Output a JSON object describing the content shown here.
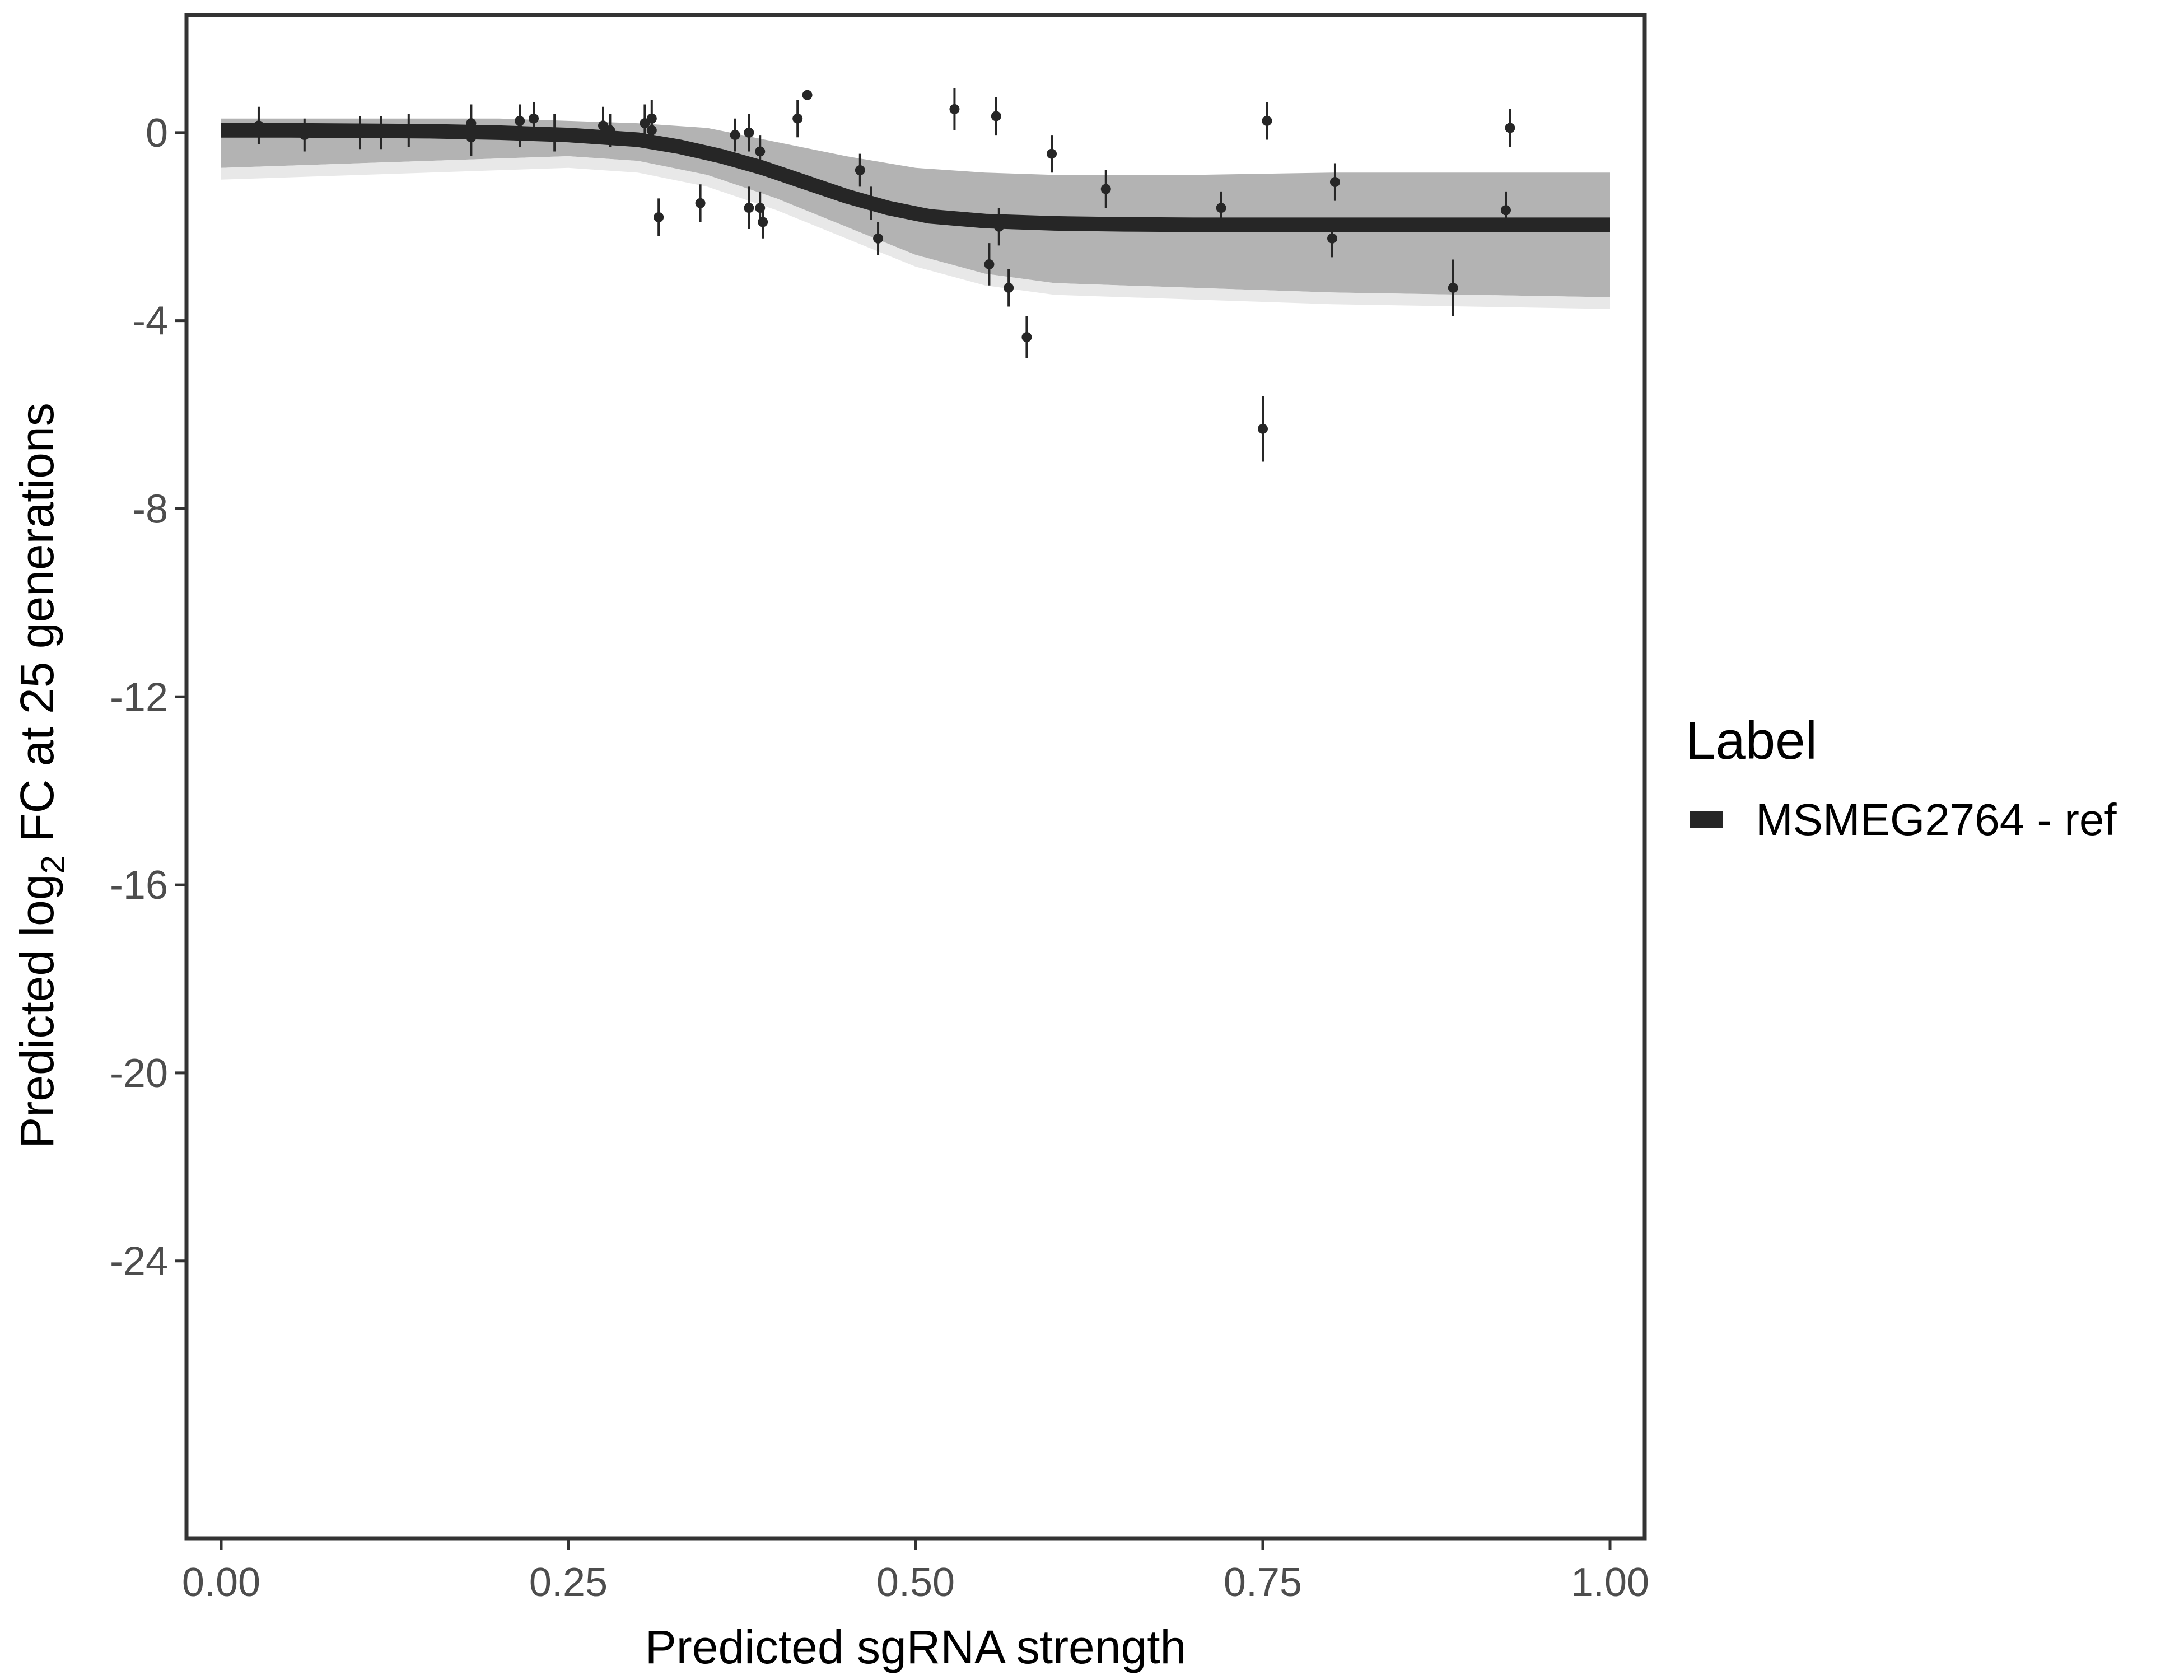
{
  "chart_data": {
    "type": "scatter",
    "xlabel": "Predicted sgRNA strength",
    "ylabel_prefix": "Predicted  log",
    "ylabel_sub": "2",
    "ylabel_suffix": " FC at 25 generations",
    "xlim": [
      -0.025,
      1.025
    ],
    "ylim": [
      -29.9,
      2.5
    ],
    "x_ticks": [
      0,
      0.25,
      0.5,
      0.75,
      1
    ],
    "x_tick_labels": [
      "0.00",
      "0.25",
      "0.50",
      "0.75",
      "1.00"
    ],
    "y_ticks": [
      0,
      -4,
      -8,
      -12,
      -16,
      -20,
      -24
    ],
    "y_tick_labels": [
      "0",
      "-4",
      "-8",
      "-12",
      "-16",
      "-20",
      "-24"
    ],
    "grid": false,
    "legend": {
      "title": "Label",
      "placement": "right",
      "entries": [
        {
          "label": "MSMEG2764 - ref",
          "color": "#262626"
        }
      ]
    },
    "fit_curve": {
      "x": [
        0,
        0.05,
        0.1,
        0.15,
        0.2,
        0.25,
        0.3,
        0.33,
        0.36,
        0.39,
        0.42,
        0.45,
        0.48,
        0.51,
        0.55,
        0.6,
        0.65,
        0.7,
        0.75,
        0.8,
        0.9,
        1.0
      ],
      "y": [
        0.05,
        0.05,
        0.04,
        0.03,
        0.0,
        -0.05,
        -0.15,
        -0.3,
        -0.5,
        -0.75,
        -1.05,
        -1.35,
        -1.6,
        -1.78,
        -1.88,
        -1.93,
        -1.95,
        -1.96,
        -1.96,
        -1.96,
        -1.96,
        -1.96
      ],
      "color": "#262626"
    },
    "uncertainty_band": {
      "x": [
        0,
        0.1,
        0.2,
        0.25,
        0.3,
        0.35,
        0.4,
        0.45,
        0.5,
        0.55,
        0.6,
        0.7,
        0.8,
        0.9,
        1.0
      ],
      "upper": [
        0.3,
        0.3,
        0.3,
        0.25,
        0.2,
        0.1,
        -0.2,
        -0.5,
        -0.75,
        -0.85,
        -0.9,
        -0.9,
        -0.85,
        -0.85,
        -0.85
      ],
      "lower": [
        -0.75,
        -0.65,
        -0.55,
        -0.5,
        -0.6,
        -0.9,
        -1.4,
        -2.0,
        -2.6,
        -3.0,
        -3.2,
        -3.3,
        -3.4,
        -3.45,
        -3.5
      ],
      "color": "#a6a6a6"
    },
    "points": [
      {
        "x": 0.027,
        "y": 0.15,
        "err": 0.4
      },
      {
        "x": 0.06,
        "y": -0.05,
        "err": 0.35
      },
      {
        "x": 0.1,
        "y": 0.0,
        "err": 0.35
      },
      {
        "x": 0.115,
        "y": 0.0,
        "err": 0.35
      },
      {
        "x": 0.135,
        "y": 0.05,
        "err": 0.35
      },
      {
        "x": 0.18,
        "y": 0.2,
        "err": 0.4
      },
      {
        "x": 0.18,
        "y": -0.1,
        "err": 0.4
      },
      {
        "x": 0.215,
        "y": 0.25,
        "err": 0.35
      },
      {
        "x": 0.215,
        "y": 0.05,
        "err": 0.35
      },
      {
        "x": 0.225,
        "y": 0.3,
        "err": 0.35
      },
      {
        "x": 0.24,
        "y": 0.0,
        "err": 0.4
      },
      {
        "x": 0.275,
        "y": 0.15,
        "err": 0.4
      },
      {
        "x": 0.28,
        "y": 0.05,
        "err": 0.35
      },
      {
        "x": 0.305,
        "y": 0.2,
        "err": 0.4
      },
      {
        "x": 0.31,
        "y": 0.3,
        "err": 0.4
      },
      {
        "x": 0.31,
        "y": 0.05,
        "err": 0.35
      },
      {
        "x": 0.315,
        "y": -1.8,
        "err": 0.4
      },
      {
        "x": 0.345,
        "y": -1.5,
        "err": 0.4
      },
      {
        "x": 0.37,
        "y": -0.05,
        "err": 0.35
      },
      {
        "x": 0.38,
        "y": 0.0,
        "err": 0.4
      },
      {
        "x": 0.38,
        "y": -1.6,
        "err": 0.45
      },
      {
        "x": 0.388,
        "y": -0.4,
        "err": 0.35
      },
      {
        "x": 0.388,
        "y": -1.6,
        "err": 0.35
      },
      {
        "x": 0.39,
        "y": -1.9,
        "err": 0.35
      },
      {
        "x": 0.415,
        "y": 0.3,
        "err": 0.4
      },
      {
        "x": 0.422,
        "y": 0.8,
        "err": 0.1
      },
      {
        "x": 0.46,
        "y": -0.8,
        "err": 0.35
      },
      {
        "x": 0.468,
        "y": -1.5,
        "err": 0.35
      },
      {
        "x": 0.473,
        "y": -2.25,
        "err": 0.35
      },
      {
        "x": 0.528,
        "y": 0.5,
        "err": 0.45
      },
      {
        "x": 0.553,
        "y": -2.8,
        "err": 0.45
      },
      {
        "x": 0.558,
        "y": 0.35,
        "err": 0.4
      },
      {
        "x": 0.56,
        "y": -2.0,
        "err": 0.4
      },
      {
        "x": 0.567,
        "y": -3.3,
        "err": 0.4
      },
      {
        "x": 0.58,
        "y": -4.35,
        "err": 0.45
      },
      {
        "x": 0.598,
        "y": -0.45,
        "err": 0.4
      },
      {
        "x": 0.637,
        "y": -1.2,
        "err": 0.4
      },
      {
        "x": 0.72,
        "y": -1.6,
        "err": 0.35
      },
      {
        "x": 0.75,
        "y": -6.3,
        "err": 0.7
      },
      {
        "x": 0.753,
        "y": 0.25,
        "err": 0.4
      },
      {
        "x": 0.8,
        "y": -2.25,
        "err": 0.4
      },
      {
        "x": 0.802,
        "y": -1.05,
        "err": 0.4
      },
      {
        "x": 0.887,
        "y": -3.3,
        "err": 0.6
      },
      {
        "x": 0.925,
        "y": -1.65,
        "err": 0.4
      },
      {
        "x": 0.928,
        "y": 0.1,
        "err": 0.4
      }
    ]
  }
}
